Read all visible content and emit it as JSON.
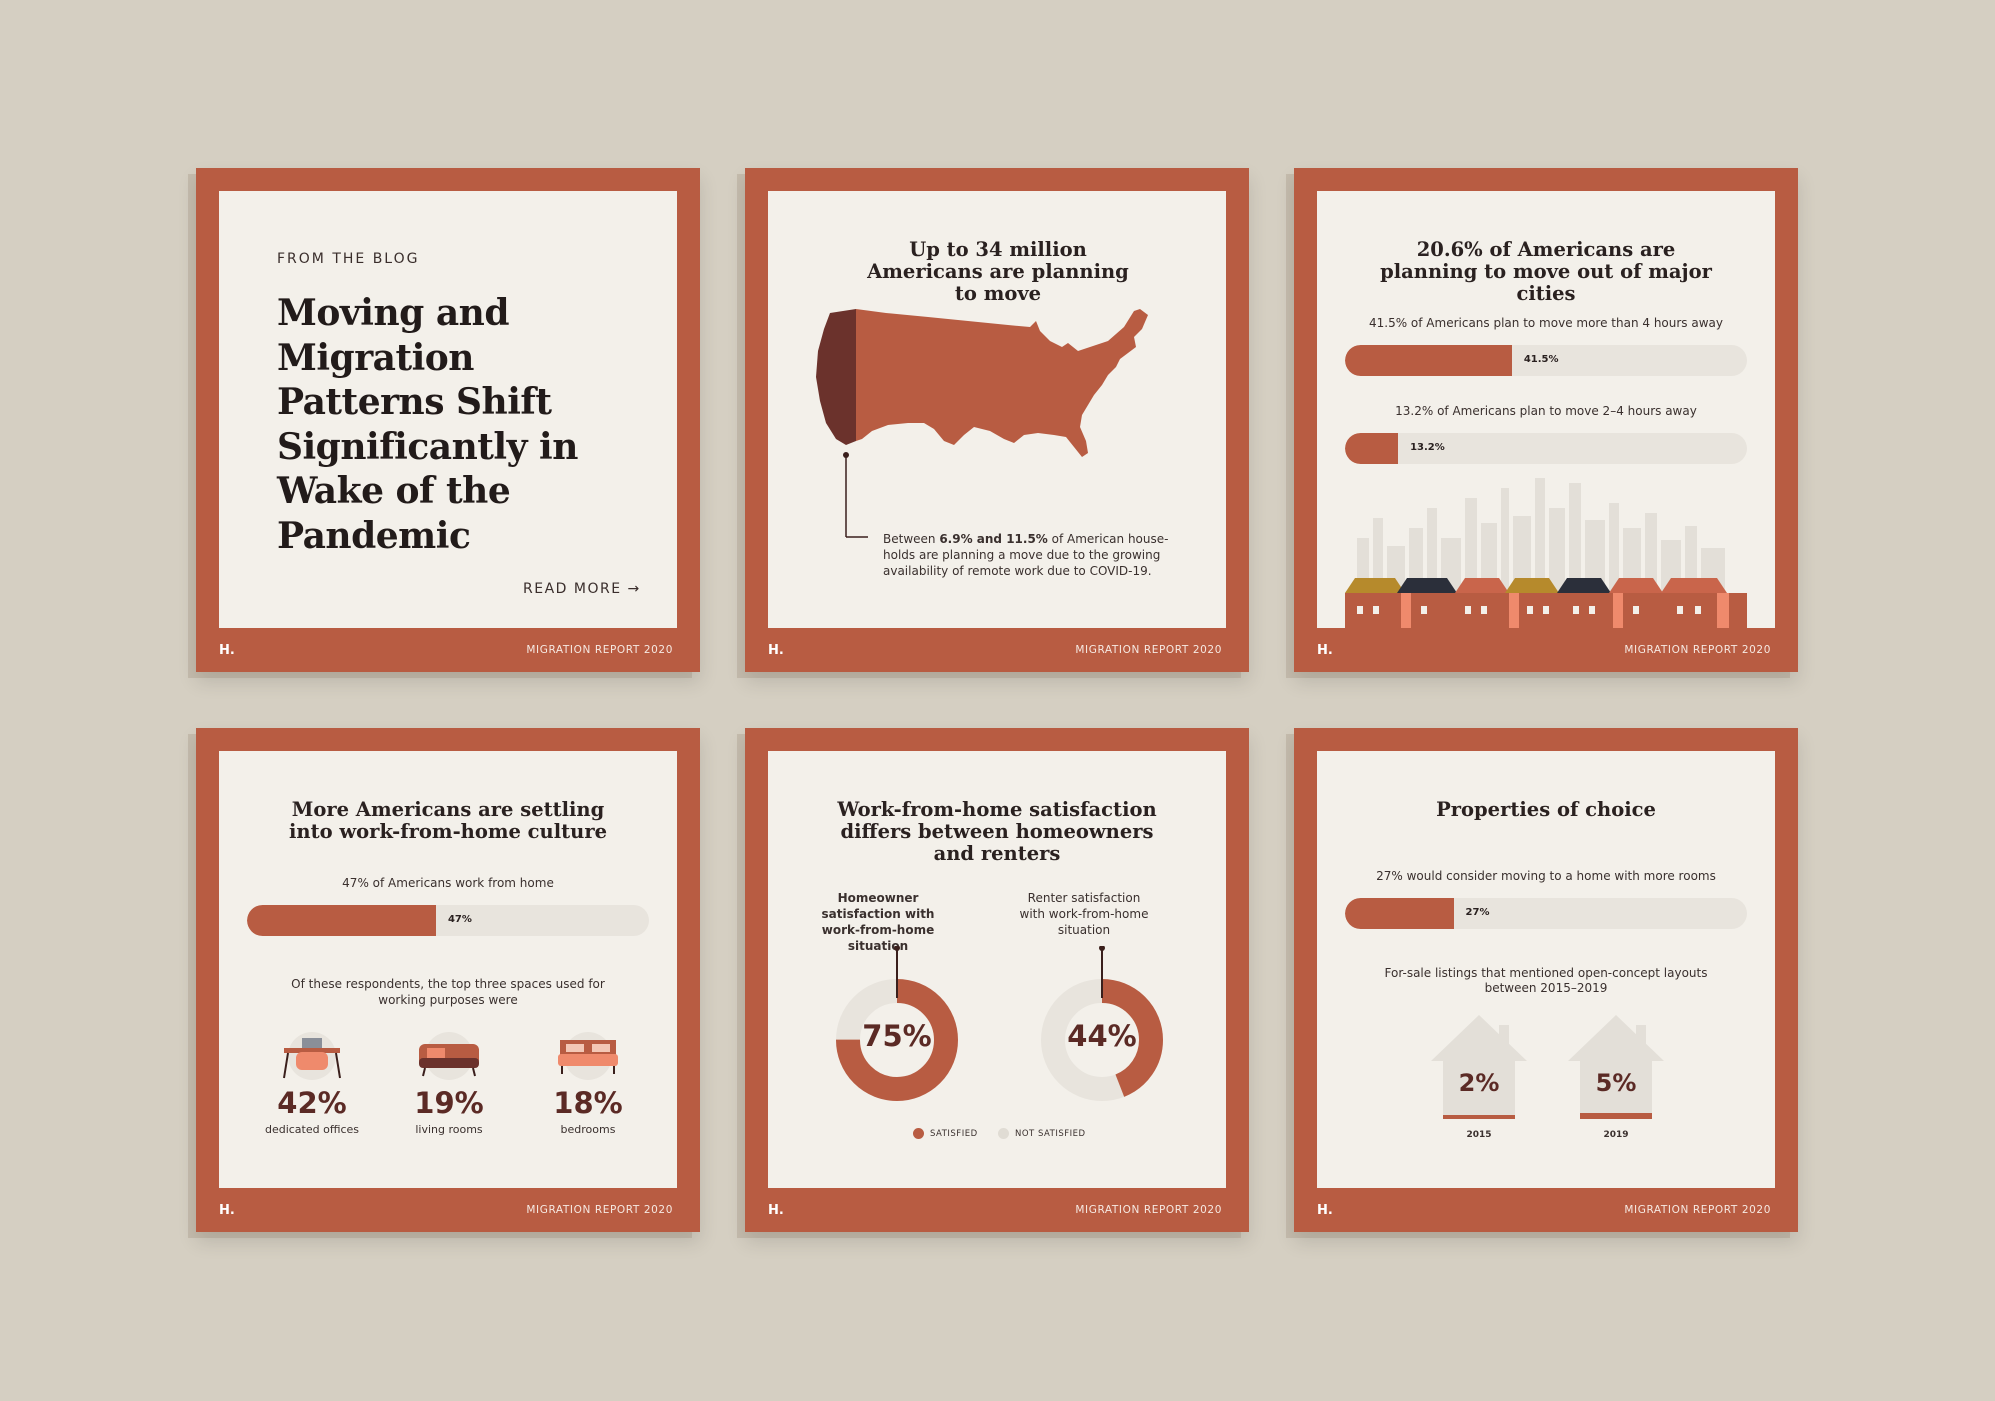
{
  "card1": {
    "eyebrow": "FROM THE BLOG",
    "headline": "Moving and Migration Patterns Shift Significantly in Wake of the Pandemic",
    "cta": "READ MORE →"
  },
  "card2": {
    "title": "Up to 34 million Americans are planning to move",
    "note_a": "Between ",
    "note_b": "6.9% and 11.5%",
    "note_c": " of American house-holds are planning a move due to the growing availability of remote work due to COVID-19."
  },
  "card3": {
    "title": "20.6% of Americans are planning to move out of major cities",
    "bar1_label": "41.5% of Americans plan to move more than 4 hours away",
    "bar1_value": "41.5%",
    "bar1_fraction": 0.415,
    "bar2_label": "13.2% of Americans plan to move 2–4 hours away",
    "bar2_value": "13.2%",
    "bar2_fraction": 0.132
  },
  "card4": {
    "title": "More Americans are settling into work-from-home culture",
    "bar_label": "47% of Americans work from home",
    "bar_value": "47%",
    "bar_fraction": 0.47,
    "sub": "Of these respondents, the top three spaces used for working purposes were",
    "spaces": [
      {
        "pct": "42%",
        "label": "dedicated offices",
        "icon": "desk-icon"
      },
      {
        "pct": "19%",
        "label": "living rooms",
        "icon": "sofa-icon"
      },
      {
        "pct": "18%",
        "label": "bedrooms",
        "icon": "bed-icon"
      }
    ]
  },
  "card5": {
    "title": "Work-from-home satisfaction differs between homeowners and renters",
    "donut1_label": "Homeowner satisfaction with work-from-home situation",
    "donut1_value": "75%",
    "donut1_fraction": 0.75,
    "donut2_label": "Renter satisfaction with work-from-home situation",
    "donut2_value": "44%",
    "donut2_fraction": 0.44,
    "legend_satisfied": "SATISFIED",
    "legend_not": "NOT SATISFIED"
  },
  "card6": {
    "title": "Properties of choice",
    "bar_label": "27% would consider moving to a home with more rooms",
    "bar_value": "27%",
    "bar_fraction": 0.27,
    "sub": "For-sale listings that mentioned open-concept layouts between 2015–2019",
    "houses": [
      {
        "pct": "2%",
        "year": "2015"
      },
      {
        "pct": "5%",
        "year": "2019"
      }
    ]
  },
  "footer": {
    "logo": "H.",
    "report": "MIGRATION REPORT 2020"
  },
  "colors": {
    "brand": "#b85c42",
    "dark": "#5b2a25",
    "paper": "#f3f0ea",
    "track": "#e8e4dd"
  }
}
